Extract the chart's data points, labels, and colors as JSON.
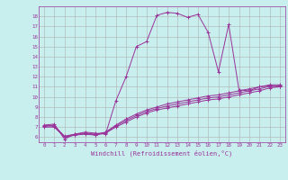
{
  "xlabel": "Windchill (Refroidissement éolien,°C)",
  "background_color": "#c8eeee",
  "grid_color": "#b0b0b0",
  "line_color": "#993399",
  "xlim": [
    -0.5,
    23.5
  ],
  "ylim": [
    5.5,
    19.0
  ],
  "xtick_vals": [
    0,
    1,
    2,
    3,
    4,
    5,
    6,
    7,
    8,
    9,
    10,
    11,
    12,
    13,
    14,
    15,
    16,
    17,
    18,
    19,
    20,
    21,
    22,
    23
  ],
  "xtick_labels": [
    "0",
    "1",
    "2",
    "3",
    "4",
    "5",
    "6",
    "7",
    "8",
    "9",
    "10",
    "11",
    "12",
    "13",
    "14",
    "15",
    "16",
    "17",
    "18",
    "19",
    "20",
    "21",
    "22",
    "23"
  ],
  "ytick_vals": [
    6,
    7,
    8,
    9,
    10,
    11,
    12,
    13,
    14,
    15,
    16,
    17,
    18
  ],
  "ytick_labels": [
    "6",
    "7",
    "8",
    "9",
    "10",
    "11",
    "12",
    "13",
    "14",
    "15",
    "16",
    "17",
    "18"
  ],
  "curve1_x": [
    0,
    1,
    2,
    3,
    4,
    5,
    6,
    7,
    8,
    9,
    10,
    11,
    12,
    13,
    14,
    15,
    16,
    17,
    18,
    19,
    20,
    21,
    22,
    23
  ],
  "curve1_y": [
    7.2,
    7.3,
    5.8,
    6.3,
    6.5,
    6.4,
    6.3,
    9.6,
    12.0,
    15.0,
    15.5,
    18.1,
    18.4,
    18.3,
    17.9,
    18.2,
    16.4,
    12.5,
    17.2,
    10.7,
    10.6,
    11.0,
    11.1,
    11.0
  ],
  "curve2_x": [
    0,
    1,
    2,
    3,
    4,
    5,
    6,
    7,
    8,
    9,
    10,
    11,
    12,
    13,
    14,
    15,
    16,
    17,
    18,
    19,
    20,
    21,
    22,
    23
  ],
  "curve2_y": [
    7.0,
    7.0,
    6.0,
    6.2,
    6.3,
    6.2,
    6.4,
    7.0,
    7.5,
    8.0,
    8.4,
    8.7,
    8.9,
    9.1,
    9.3,
    9.5,
    9.7,
    9.8,
    10.0,
    10.2,
    10.4,
    10.6,
    10.9,
    11.0
  ],
  "curve3_x": [
    0,
    1,
    2,
    3,
    4,
    5,
    6,
    7,
    8,
    9,
    10,
    11,
    12,
    13,
    14,
    15,
    16,
    17,
    18,
    19,
    20,
    21,
    22,
    23
  ],
  "curve3_y": [
    7.1,
    7.1,
    6.1,
    6.3,
    6.4,
    6.3,
    6.5,
    7.2,
    7.8,
    8.3,
    8.7,
    9.0,
    9.3,
    9.5,
    9.7,
    9.9,
    10.1,
    10.2,
    10.4,
    10.6,
    10.8,
    11.0,
    11.2,
    11.2
  ],
  "curve4_x": [
    0,
    1,
    2,
    3,
    4,
    5,
    6,
    7,
    8,
    9,
    10,
    11,
    12,
    13,
    14,
    15,
    16,
    17,
    18,
    19,
    20,
    21,
    22,
    23
  ],
  "curve4_y": [
    7.15,
    7.15,
    6.05,
    6.25,
    6.35,
    6.25,
    6.45,
    7.1,
    7.65,
    8.15,
    8.55,
    8.85,
    9.1,
    9.3,
    9.5,
    9.7,
    9.9,
    10.0,
    10.2,
    10.4,
    10.6,
    10.8,
    11.05,
    11.1
  ]
}
